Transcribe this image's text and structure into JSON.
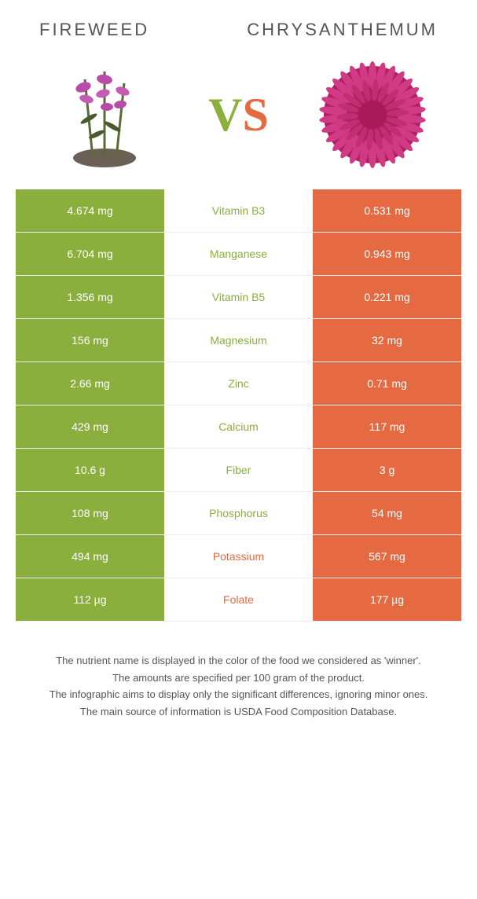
{
  "header": {
    "left": "Fireweed",
    "right": "Chrysanthemum"
  },
  "vs": {
    "v": "V",
    "s": "S"
  },
  "colors": {
    "green": "#8aaf3c",
    "orange": "#e56a42"
  },
  "rows": [
    {
      "left": "4.674 mg",
      "mid": "Vitamin B3",
      "right": "0.531 mg",
      "winner": "green"
    },
    {
      "left": "6.704 mg",
      "mid": "Manganese",
      "right": "0.943 mg",
      "winner": "green"
    },
    {
      "left": "1.356 mg",
      "mid": "Vitamin B5",
      "right": "0.221 mg",
      "winner": "green"
    },
    {
      "left": "156 mg",
      "mid": "Magnesium",
      "right": "32 mg",
      "winner": "green"
    },
    {
      "left": "2.66 mg",
      "mid": "Zinc",
      "right": "0.71 mg",
      "winner": "green"
    },
    {
      "left": "429 mg",
      "mid": "Calcium",
      "right": "117 mg",
      "winner": "green"
    },
    {
      "left": "10.6 g",
      "mid": "Fiber",
      "right": "3 g",
      "winner": "green"
    },
    {
      "left": "108 mg",
      "mid": "Phosphorus",
      "right": "54 mg",
      "winner": "green"
    },
    {
      "left": "494 mg",
      "mid": "Potassium",
      "right": "567 mg",
      "winner": "orange"
    },
    {
      "left": "112 µg",
      "mid": "Folate",
      "right": "177 µg",
      "winner": "orange"
    }
  ],
  "footer": {
    "l1": "The nutrient name is displayed in the color of the food we considered as 'winner'.",
    "l2": "The amounts are specified per 100 gram of the product.",
    "l3": "The infographic aims to display only the significant differences, ignoring minor ones.",
    "l4": "The main source of information is USDA Food Composition Database."
  }
}
